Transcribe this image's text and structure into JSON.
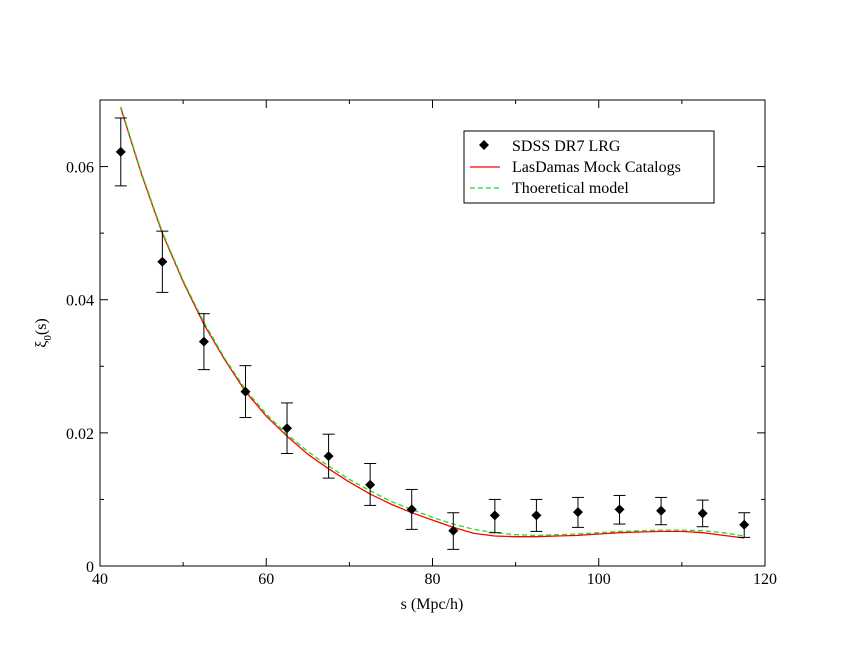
{
  "chart_data": {
    "type": "scatter",
    "xlabel": "s (Mpc/h)",
    "ylabel_main": "ξ",
    "ylabel_sub": "0",
    "ylabel_tail": "(s)",
    "xlim": [
      40,
      120
    ],
    "ylim": [
      0,
      0.07
    ],
    "xticks": [
      40,
      60,
      80,
      100,
      120
    ],
    "xtick_labels": [
      "40",
      "60",
      "80",
      "100",
      "120"
    ],
    "yticks": [
      0,
      0.02,
      0.04,
      0.06
    ],
    "ytick_labels": [
      "0",
      "0.02",
      "0.04",
      "0.06"
    ],
    "grid": false,
    "legend_position": "top-right",
    "series": [
      {
        "name": "SDSS DR7 LRG",
        "kind": "points-with-errorbars",
        "color": "#000000",
        "x": [
          42.5,
          47.5,
          52.5,
          57.5,
          62.5,
          67.5,
          72.5,
          77.5,
          82.5,
          87.5,
          92.5,
          97.5,
          102.5,
          107.5,
          112.5,
          117.5
        ],
        "y": [
          0.0622,
          0.0457,
          0.0337,
          0.0262,
          0.0207,
          0.0165,
          0.0122,
          0.0085,
          0.0053,
          0.0076,
          0.0076,
          0.0081,
          0.0085,
          0.0083,
          0.0079,
          0.0062
        ],
        "yerr_lo": [
          0.0571,
          0.0411,
          0.0295,
          0.0223,
          0.0169,
          0.0132,
          0.0091,
          0.0055,
          0.0025,
          0.005,
          0.0052,
          0.0058,
          0.0063,
          0.0062,
          0.0059,
          0.0043
        ],
        "yerr_hi": [
          0.0673,
          0.0503,
          0.0379,
          0.0301,
          0.0245,
          0.0198,
          0.0154,
          0.0115,
          0.008,
          0.01,
          0.01,
          0.0103,
          0.0106,
          0.0103,
          0.0099,
          0.008
        ]
      },
      {
        "name": "LasDamas Mock Catalogs",
        "kind": "line",
        "color": "#ff0000",
        "dash": "solid",
        "x": [
          42.5,
          45,
          47.5,
          50,
          52.5,
          55,
          57.5,
          60,
          62.5,
          65,
          67.5,
          70,
          72.5,
          75,
          77.5,
          80,
          82.5,
          85,
          87.5,
          90,
          92.5,
          95,
          97.5,
          100,
          102.5,
          105,
          107.5,
          110,
          112.5,
          115,
          117.5
        ],
        "y": [
          0.0688,
          0.0588,
          0.05,
          0.0427,
          0.0363,
          0.031,
          0.0262,
          0.0225,
          0.0195,
          0.0168,
          0.0146,
          0.0126,
          0.0108,
          0.0093,
          0.008,
          0.0069,
          0.0058,
          0.0049,
          0.0045,
          0.0044,
          0.0044,
          0.0045,
          0.0046,
          0.0048,
          0.005,
          0.0051,
          0.0052,
          0.0052,
          0.005,
          0.0046,
          0.0042
        ]
      },
      {
        "name": "Thoeretical model",
        "kind": "line",
        "color": "#22dd22",
        "dash": "dashed",
        "x": [
          42.5,
          45,
          47.5,
          50,
          52.5,
          55,
          57.5,
          60,
          62.5,
          65,
          67.5,
          70,
          72.5,
          75,
          77.5,
          80,
          82.5,
          85,
          87.5,
          90,
          92.5,
          95,
          97.5,
          100,
          102.5,
          105,
          107.5,
          110,
          112.5,
          115,
          117.5
        ],
        "y": [
          0.069,
          0.059,
          0.0502,
          0.0429,
          0.0366,
          0.0312,
          0.0265,
          0.0228,
          0.0198,
          0.0172,
          0.015,
          0.013,
          0.0113,
          0.0097,
          0.0085,
          0.0073,
          0.0063,
          0.0055,
          0.005,
          0.0047,
          0.0046,
          0.0047,
          0.0048,
          0.005,
          0.0052,
          0.0053,
          0.0054,
          0.0054,
          0.0053,
          0.005,
          0.0045
        ]
      }
    ]
  }
}
